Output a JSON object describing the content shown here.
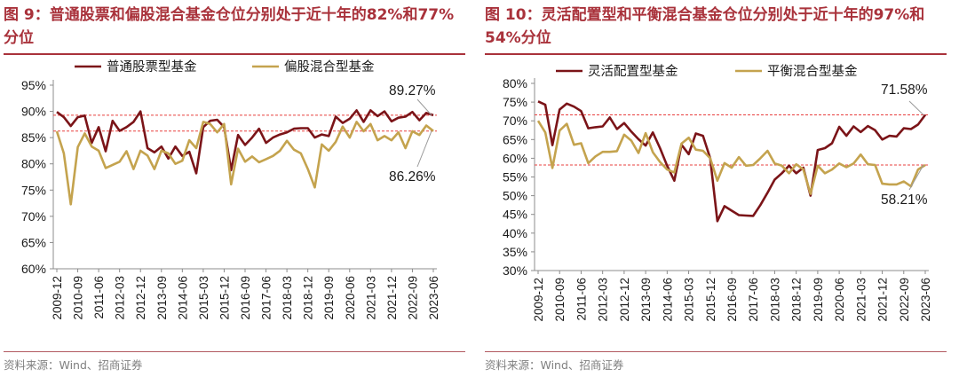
{
  "figures": [
    {
      "title_prefix": "图 9：",
      "title_text": "普通股票和偏股混合基金仓位分别处于近十年的82%和77%分位",
      "source": "资料来源：Wind、招商证券"
    },
    {
      "title_prefix": "图 10：",
      "title_text": "灵活配置型和平衡混合基金仓位分别处于近十年的97%和54%分位",
      "source": "资料来源：Wind、招商证券"
    }
  ],
  "colors": {
    "series_a": "#7b1418",
    "series_b": "#c4a34e",
    "refline": "#e8403f",
    "accent": "#a9323b"
  },
  "chart_data": [
    {
      "type": "line",
      "title": "普通股票和偏股混合基金仓位分别处于近十年的82%和77%分位",
      "x_tick_labels": [
        "2009-12",
        "2010-09",
        "2011-06",
        "2012-03",
        "2012-12",
        "2013-09",
        "2014-06",
        "2015-03",
        "2015-12",
        "2016-09",
        "2017-06",
        "2018-03",
        "2018-12",
        "2019-09",
        "2020-06",
        "2021-03",
        "2021-12",
        "2022-09",
        "2023-06"
      ],
      "y_ticks": [
        "60%",
        "65%",
        "70%",
        "75%",
        "80%",
        "85%",
        "90%",
        "95%"
      ],
      "ylim": [
        60,
        95
      ],
      "num_points": 55,
      "series": [
        {
          "name": "普通股票型基金",
          "values": [
            89.9,
            88.9,
            87.2,
            88.9,
            89.2,
            84.0,
            87.0,
            82.4,
            88.2,
            86.3,
            87.0,
            88.0,
            90.0,
            83.0,
            82.2,
            83.3,
            81.0,
            83.3,
            81.5,
            82.3,
            78.2,
            87.0,
            88.2,
            88.4,
            87.0,
            78.8,
            85.5,
            83.6,
            85.0,
            86.7,
            84.0,
            85.0,
            85.6,
            86.0,
            86.7,
            86.8,
            86.8,
            85.0,
            85.6,
            85.3,
            89.0,
            87.8,
            88.6,
            90.2,
            88.0,
            90.2,
            89.1,
            90.0,
            88.1,
            88.8,
            89.0,
            89.9,
            88.3,
            89.7,
            89.27
          ]
        },
        {
          "name": "偏股混合型基金",
          "values": [
            86.2,
            82.0,
            72.3,
            83.2,
            85.8,
            83.3,
            82.5,
            79.2,
            79.8,
            80.4,
            82.4,
            79.0,
            82.5,
            81.6,
            79.0,
            82.5,
            82.0,
            80.0,
            80.6,
            84.5,
            83.0,
            88.0,
            87.6,
            86.0,
            87.6,
            76.1,
            82.9,
            80.4,
            81.4,
            80.3,
            80.9,
            81.5,
            82.5,
            84.4,
            82.7,
            82.0,
            79.0,
            75.5,
            83.7,
            82.5,
            84.2,
            87.1,
            85.0,
            88.0,
            86.2,
            87.6,
            84.5,
            85.3,
            84.5,
            86.0,
            83.0,
            86.2,
            85.5,
            87.3,
            86.26
          ]
        }
      ],
      "ref_lines": [
        89.27,
        86.26
      ],
      "annotations": [
        "89.27%",
        "86.26%"
      ],
      "legend_position": "top"
    },
    {
      "type": "line",
      "title": "灵活配置型和平衡混合基金仓位分别处于近十年的97%和54%分位",
      "x_tick_labels": [
        "2009-12",
        "2010-09",
        "2011-06",
        "2012-03",
        "2012-12",
        "2013-09",
        "2014-06",
        "2015-03",
        "2015-12",
        "2016-09",
        "2017-06",
        "2018-03",
        "2018-12",
        "2019-09",
        "2020-06",
        "2021-03",
        "2021-12",
        "2022-09",
        "2023-06"
      ],
      "y_ticks": [
        "30%",
        "35%",
        "40%",
        "45%",
        "50%",
        "55%",
        "60%",
        "65%",
        "70%",
        "75%",
        "80%"
      ],
      "ylim": [
        30,
        80
      ],
      "num_points": 55,
      "series": [
        {
          "name": "灵活配置型基金",
          "values": [
            75.2,
            74.3,
            63.5,
            73.0,
            74.6,
            73.8,
            72.6,
            68.0,
            68.3,
            68.5,
            70.9,
            67.8,
            69.4,
            67.1,
            65.1,
            63.4,
            66.9,
            62.7,
            58.0,
            54.0,
            63.6,
            61.1,
            66.6,
            66.0,
            60.0,
            43.2,
            47.2,
            46.0,
            44.8,
            44.7,
            44.6,
            47.5,
            50.8,
            54.3,
            56.0,
            58.0,
            56.0,
            57.5,
            50.0,
            62.2,
            62.7,
            64.0,
            68.4,
            66.0,
            68.5,
            67.0,
            68.6,
            67.5,
            65.0,
            66.0,
            65.8,
            68.0,
            67.8,
            69.0,
            71.58
          ]
        },
        {
          "name": "平衡混合型基金",
          "values": [
            70.0,
            66.9,
            57.4,
            67.4,
            69.2,
            63.6,
            64.0,
            58.7,
            60.5,
            61.7,
            61.7,
            61.9,
            66.3,
            64.7,
            61.4,
            66.7,
            61.6,
            59.0,
            57.0,
            56.2,
            63.9,
            65.5,
            62.3,
            62.0,
            60.0,
            54.0,
            58.7,
            57.5,
            60.3,
            58.0,
            58.2,
            60.0,
            62.0,
            58.6,
            58.0,
            56.0,
            58.4,
            57.0,
            50.5,
            58.0,
            56.0,
            57.0,
            58.6,
            57.6,
            58.6,
            61.0,
            58.4,
            58.2,
            53.2,
            53.0,
            53.0,
            53.8,
            52.5,
            57.0,
            58.21
          ]
        }
      ],
      "ref_lines": [
        71.58,
        58.21
      ],
      "annotations": [
        "71.58%",
        "58.21%"
      ],
      "legend_position": "top"
    }
  ]
}
